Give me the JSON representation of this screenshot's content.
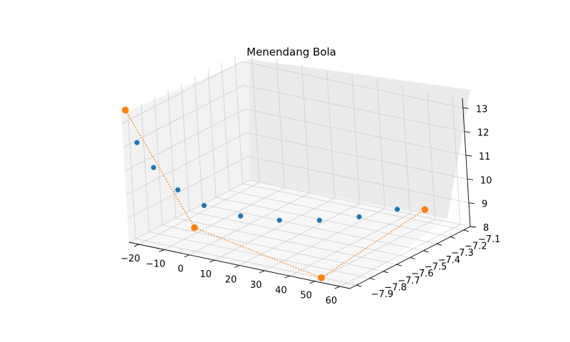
{
  "chart_data": {
    "type": "scatter",
    "projection": "3d",
    "title": "Menendang Bola",
    "xlabel": "",
    "ylabel": "",
    "zlabel": "",
    "grid": true,
    "xlim": [
      -24,
      64
    ],
    "ylim": [
      -7.95,
      -7.05
    ],
    "zlim": [
      8,
      13.4
    ],
    "x_ticks": [
      -20,
      -10,
      0,
      10,
      20,
      30,
      40,
      50,
      60
    ],
    "y_ticks": [
      -7.9,
      -7.8,
      -7.7,
      -7.6,
      -7.5,
      -7.4,
      -7.3,
      -7.2,
      -7.1
    ],
    "z_ticks": [
      8,
      9,
      10,
      11,
      12,
      13
    ],
    "x_tick_labels": [
      "−20",
      "−10",
      "0",
      "10",
      "20",
      "30",
      "40",
      "50",
      "60"
    ],
    "y_tick_labels": [
      "−7.9",
      "−7.8",
      "−7.7",
      "−7.6",
      "−7.5",
      "−7.4",
      "−7.3",
      "−7.2",
      "−7.1"
    ],
    "z_tick_labels": [
      "8",
      "9",
      "10",
      "11",
      "12",
      "13"
    ],
    "colors": {
      "series_1": "#1f77b4",
      "series_2": "#ff7f0e",
      "pane_left": "#f2f2f2",
      "pane_back": "#ebebeb",
      "pane_floor": "#f7f7f7",
      "grid": "#cfcfcf"
    },
    "series": [
      {
        "type": "scatter",
        "x": [
          -20,
          -15,
          -8,
          0,
          10,
          20,
          30,
          40,
          50
        ],
        "y": [
          -7.92,
          -7.9,
          -7.86,
          -7.82,
          -7.74,
          -7.64,
          -7.53,
          -7.42,
          -7.32
        ],
        "z": [
          12.2,
          11.2,
          10.3,
          9.7,
          9.25,
          9.0,
          8.9,
          8.95,
          9.2
        ]
      },
      {
        "type": "line-markers",
        "linestyle": "dotted",
        "x": [
          -25,
          0,
          50,
          60
        ],
        "y": [
          -7.9,
          -7.9,
          -7.9,
          -7.3
        ],
        "z": [
          13.4,
          9.0,
          8.0,
          9.35
        ]
      }
    ]
  }
}
